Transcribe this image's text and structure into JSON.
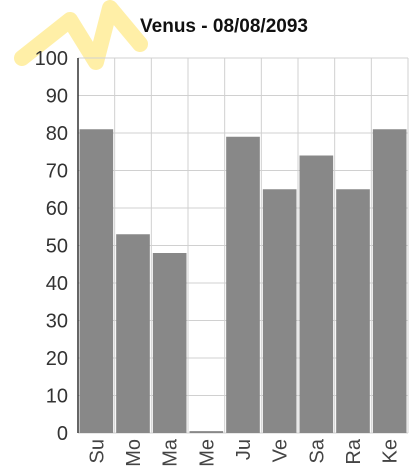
{
  "chart_data": {
    "type": "bar",
    "title": "Venus - 08/08/2093",
    "categories": [
      "Su",
      "Mo",
      "Ma",
      "Me",
      "Ju",
      "Ve",
      "Sa",
      "Ra",
      "Ke"
    ],
    "values": [
      81,
      53,
      48,
      0.5,
      79,
      65,
      74,
      65,
      81
    ],
    "ylim": [
      0,
      100
    ],
    "yticks": [
      0,
      10,
      20,
      30,
      40,
      50,
      60,
      70,
      80,
      90,
      100
    ],
    "grid": true,
    "xlabel": "",
    "ylabel": ""
  },
  "colors": {
    "bar": "#888888",
    "grid": "#d0d0d0",
    "axis": "#333333",
    "watermark": "#ffe98a"
  }
}
